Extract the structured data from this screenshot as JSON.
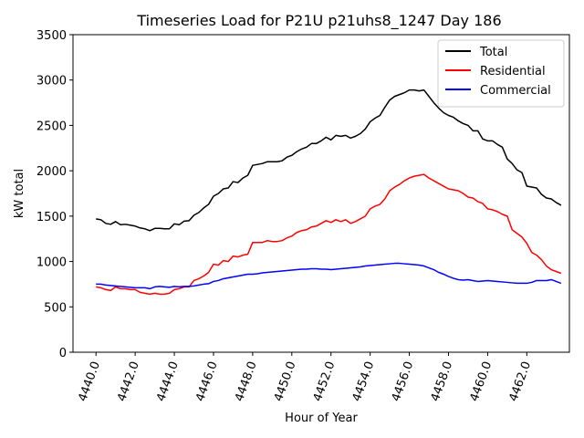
{
  "chart_data": {
    "type": "line",
    "title": "Timeseries Load for P21U p21uhs8_1247  Day 186",
    "xlabel": "Hour of Year",
    "ylabel": "kW total",
    "xlim": [
      4438.825,
      4464.175
    ],
    "ylim": [
      0,
      3500
    ],
    "xticks": [
      4440,
      4442,
      4444,
      4446,
      4448,
      4450,
      4452,
      4454,
      4456,
      4458,
      4460,
      4462
    ],
    "xtick_labels": [
      "4440.0",
      "4442.0",
      "4444.0",
      "4446.0",
      "4448.0",
      "4450.0",
      "4452.0",
      "4454.0",
      "4456.0",
      "4458.0",
      "4460.0",
      "4462.0"
    ],
    "yticks": [
      0,
      500,
      1000,
      1500,
      2000,
      2500,
      3000,
      3500
    ],
    "ytick_labels": [
      "0",
      "500",
      "1000",
      "1500",
      "2000",
      "2500",
      "3000",
      "3500"
    ],
    "legend_position": "top-right",
    "x_start": 4440,
    "x_step": 0.25,
    "series": [
      {
        "name": "Total",
        "color": "#000000",
        "values": [
          1470,
          1460,
          1420,
          1410,
          1440,
          1405,
          1410,
          1400,
          1390,
          1370,
          1360,
          1340,
          1365,
          1365,
          1360,
          1360,
          1415,
          1405,
          1445,
          1450,
          1510,
          1540,
          1590,
          1630,
          1720,
          1750,
          1800,
          1810,
          1880,
          1870,
          1920,
          1950,
          2060,
          2070,
          2080,
          2100,
          2100,
          2100,
          2110,
          2150,
          2170,
          2210,
          2240,
          2260,
          2300,
          2300,
          2330,
          2370,
          2340,
          2390,
          2380,
          2390,
          2360,
          2380,
          2410,
          2460,
          2540,
          2580,
          2610,
          2700,
          2780,
          2820,
          2840,
          2860,
          2890,
          2890,
          2880,
          2890,
          2820,
          2750,
          2690,
          2640,
          2610,
          2590,
          2550,
          2520,
          2500,
          2440,
          2440,
          2350,
          2330,
          2330,
          2290,
          2260,
          2130,
          2080,
          2010,
          1980,
          1830,
          1820,
          1810,
          1740,
          1700,
          1690,
          1650,
          1620
        ]
      },
      {
        "name": "Residential",
        "color": "#ff0000",
        "values": [
          720,
          710,
          690,
          680,
          720,
          700,
          700,
          690,
          690,
          660,
          650,
          640,
          650,
          640,
          640,
          650,
          690,
          700,
          720,
          720,
          790,
          810,
          840,
          880,
          970,
          960,
          1010,
          1000,
          1060,
          1050,
          1070,
          1080,
          1210,
          1210,
          1210,
          1230,
          1220,
          1220,
          1230,
          1260,
          1280,
          1320,
          1340,
          1350,
          1380,
          1390,
          1420,
          1450,
          1430,
          1460,
          1440,
          1460,
          1420,
          1440,
          1470,
          1500,
          1580,
          1610,
          1630,
          1690,
          1780,
          1820,
          1850,
          1890,
          1920,
          1940,
          1950,
          1960,
          1920,
          1890,
          1860,
          1830,
          1800,
          1790,
          1780,
          1750,
          1710,
          1700,
          1660,
          1640,
          1580,
          1570,
          1550,
          1520,
          1500,
          1350,
          1310,
          1270,
          1200,
          1100,
          1070,
          1020,
          950,
          910,
          890,
          870
        ]
      },
      {
        "name": "Commercial",
        "color": "#0000ff",
        "values": [
          750,
          750,
          740,
          735,
          730,
          725,
          720,
          715,
          710,
          710,
          710,
          700,
          720,
          725,
          720,
          715,
          725,
          720,
          725,
          725,
          730,
          740,
          750,
          755,
          780,
          790,
          810,
          820,
          830,
          840,
          850,
          860,
          860,
          865,
          875,
          880,
          885,
          890,
          895,
          900,
          905,
          910,
          915,
          915,
          920,
          920,
          915,
          915,
          910,
          915,
          920,
          925,
          930,
          935,
          940,
          950,
          955,
          960,
          965,
          970,
          975,
          980,
          980,
          975,
          970,
          965,
          960,
          950,
          930,
          910,
          880,
          860,
          835,
          815,
          800,
          795,
          800,
          790,
          780,
          785,
          790,
          785,
          780,
          775,
          770,
          765,
          760,
          760,
          760,
          770,
          790,
          790,
          790,
          800,
          780,
          760
        ]
      }
    ]
  }
}
